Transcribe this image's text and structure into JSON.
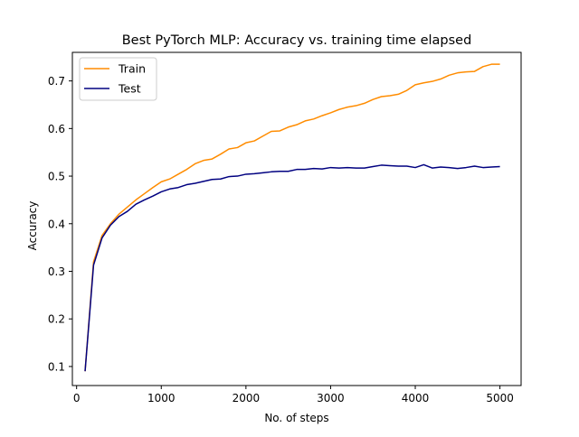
{
  "chart_data": {
    "type": "line",
    "title": "Best PyTorch MLP: Accuracy vs. training time elapsed",
    "xlabel": "No. of steps",
    "ylabel": "Accuracy",
    "xlim": [
      -50,
      5250
    ],
    "ylim": [
      0.06,
      0.76
    ],
    "xticks": [
      0,
      1000,
      2000,
      3000,
      4000,
      5000
    ],
    "yticks": [
      0.1,
      0.2,
      0.3,
      0.4,
      0.5,
      0.6,
      0.7
    ],
    "xtick_labels": [
      "0",
      "1000",
      "2000",
      "3000",
      "4000",
      "5000"
    ],
    "ytick_labels": [
      "0.1",
      "0.2",
      "0.3",
      "0.4",
      "0.5",
      "0.6",
      "0.7"
    ],
    "grid": false,
    "legend_position": "top-left",
    "x": [
      100,
      200,
      300,
      400,
      500,
      600,
      700,
      800,
      900,
      1000,
      1100,
      1200,
      1300,
      1400,
      1500,
      1600,
      1700,
      1800,
      1900,
      2000,
      2100,
      2200,
      2300,
      2400,
      2500,
      2600,
      2700,
      2800,
      2900,
      3000,
      3100,
      3200,
      3300,
      3400,
      3500,
      3600,
      3700,
      3800,
      3900,
      4000,
      4100,
      4200,
      4300,
      4400,
      4500,
      4600,
      4700,
      4800,
      4900,
      5000
    ],
    "series": [
      {
        "name": "Train",
        "color": "#ff8c00",
        "values": [
          0.09,
          0.32,
          0.375,
          0.4,
          0.42,
          0.435,
          0.45,
          0.463,
          0.476,
          0.488,
          0.494,
          0.504,
          0.514,
          0.526,
          0.533,
          0.536,
          0.546,
          0.557,
          0.56,
          0.57,
          0.574,
          0.584,
          0.594,
          0.595,
          0.603,
          0.608,
          0.616,
          0.62,
          0.627,
          0.633,
          0.64,
          0.645,
          0.648,
          0.653,
          0.661,
          0.667,
          0.669,
          0.672,
          0.68,
          0.692,
          0.696,
          0.699,
          0.704,
          0.712,
          0.717,
          0.719,
          0.72,
          0.73,
          0.735,
          0.735
        ]
      },
      {
        "name": "Test",
        "color": "#000080",
        "values": [
          0.09,
          0.313,
          0.37,
          0.397,
          0.415,
          0.426,
          0.441,
          0.45,
          0.458,
          0.467,
          0.473,
          0.476,
          0.482,
          0.485,
          0.489,
          0.493,
          0.494,
          0.499,
          0.5,
          0.504,
          0.505,
          0.507,
          0.509,
          0.51,
          0.51,
          0.514,
          0.514,
          0.516,
          0.515,
          0.518,
          0.517,
          0.518,
          0.517,
          0.517,
          0.52,
          0.523,
          0.522,
          0.521,
          0.521,
          0.518,
          0.524,
          0.517,
          0.519,
          0.518,
          0.516,
          0.518,
          0.521,
          0.518,
          0.519,
          0.52
        ]
      }
    ]
  }
}
